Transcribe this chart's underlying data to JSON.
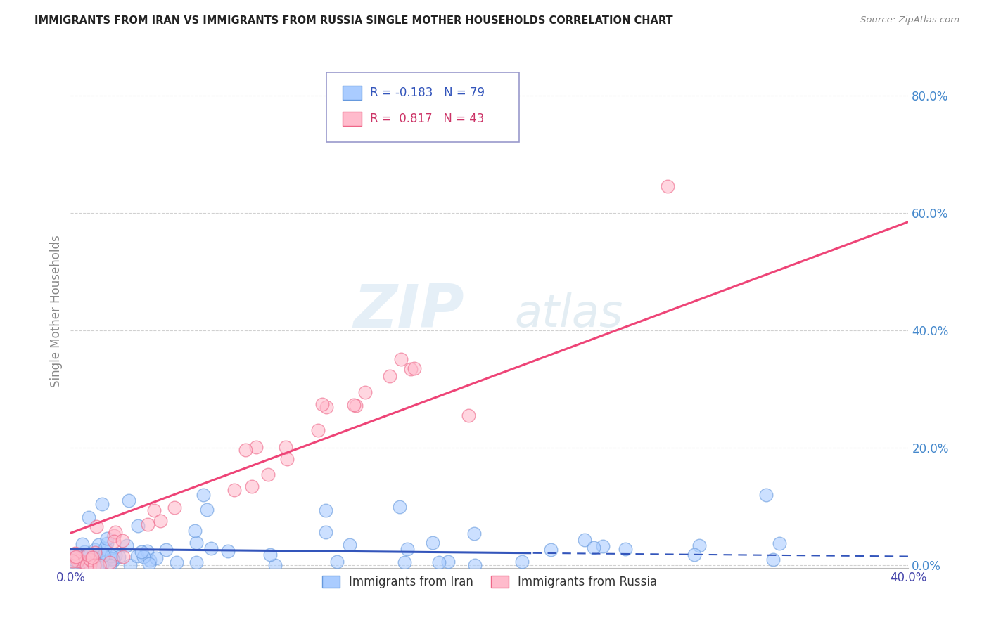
{
  "title": "IMMIGRANTS FROM IRAN VS IMMIGRANTS FROM RUSSIA SINGLE MOTHER HOUSEHOLDS CORRELATION CHART",
  "source": "Source: ZipAtlas.com",
  "ylabel_label": "Single Mother Households",
  "xmin": 0.0,
  "xmax": 0.4,
  "ymin": -0.005,
  "ymax": 0.87,
  "ytick_labels": [
    "0.0%",
    "20.0%",
    "40.0%",
    "60.0%",
    "80.0%"
  ],
  "ytick_values": [
    0.0,
    0.2,
    0.4,
    0.6,
    0.8
  ],
  "xtick_labels": [
    "0.0%",
    "",
    "",
    "",
    "40.0%"
  ],
  "xtick_values": [
    0.0,
    0.1,
    0.2,
    0.3,
    0.4
  ],
  "iran_color": "#aaccff",
  "iran_edge_color": "#6699dd",
  "russia_color": "#ffbbcc",
  "russia_edge_color": "#ee6688",
  "iran_R": -0.183,
  "iran_N": 79,
  "russia_R": 0.817,
  "russia_N": 43,
  "iran_trend_color": "#3355bb",
  "russia_trend_color": "#ee4477",
  "watermark_zip": "ZIP",
  "watermark_atlas": "atlas",
  "legend_label_iran": "Immigrants from Iran",
  "legend_label_russia": "Immigrants from Russia",
  "background_color": "#ffffff",
  "grid_color": "#cccccc",
  "title_color": "#222222",
  "ylabel_color": "#888888",
  "tick_color_x": "#4444aa",
  "tick_color_y": "#4488cc",
  "source_color": "#888888",
  "legend_text_iran": "R = -0.183   N = 79",
  "legend_text_russia": "R =  0.817   N = 43"
}
